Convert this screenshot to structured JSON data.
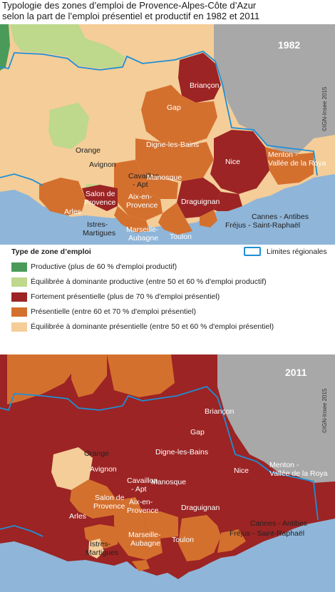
{
  "title": {
    "line1": "Typologie des zones d’emploi de Provence-Alpes-Côte d’Azur",
    "line2": "selon la part de l’emploi présentiel et productif en 1982 et 2011"
  },
  "maps": [
    {
      "year": "1982",
      "copyright": "©IGN-Insee 2015"
    },
    {
      "year": "2011",
      "copyright": "©IGN-Insee 2015"
    }
  ],
  "zones": {
    "briancon": "Briançon",
    "gap": "Gap",
    "orange": "Orange",
    "digne": "Digne-les-Bains",
    "nice": "Nice",
    "menton_1": "Menton -",
    "menton_2": "Vallée de la Roya",
    "avignon": "Avignon",
    "cavaillon_1": "Cavaillon",
    "cavaillon_2": "- Apt",
    "manosque": "Manosque",
    "salon_1": "Salon de",
    "salon_2": "Provence",
    "aix_1": "Aix-en-",
    "aix_2": "Provence",
    "draguignan": "Draguignan",
    "arles": "Arles",
    "cannes": "Cannes - Antibes",
    "marseille_1": "Marseille-",
    "marseille_2": "Aubagne",
    "toulon": "Toulon",
    "frejus": "Fréjus - Saint-Raphaël",
    "istres_1": "Istres-",
    "istres_2": "Martigues"
  },
  "legend": {
    "title": "Type de zone d’emploi",
    "boundary": "Limites régionales",
    "items": [
      {
        "label": "Productive (plus de 60 % d'emploi productif)",
        "color": "#4a9a5a"
      },
      {
        "label": "Équilibrée à dominante productive (entre 50 et 60 % d'emploi productif)",
        "color": "#bed88c"
      },
      {
        "label": "Fortement présentielle (plus de 70 % d'emploi présentiel)",
        "color": "#9c2424"
      },
      {
        "label": "Présentielle (entre 60 et 70 % d'emploi présentiel)",
        "color": "#d4702e"
      },
      {
        "label": "Équilibrée à dominante présentielle (entre 50 et 60 % d'emploi présentiel)",
        "color": "#f4cd98"
      }
    ]
  },
  "colors": {
    "sea": "#8fb5d8",
    "outside": "#a8a8a8",
    "productive": "#4a9a5a",
    "eq_productive": "#bed88c",
    "strong_pres": "#9c2424",
    "pres": "#d4702e",
    "eq_pres": "#f4cd98",
    "boundary": "#1e8fd6"
  }
}
